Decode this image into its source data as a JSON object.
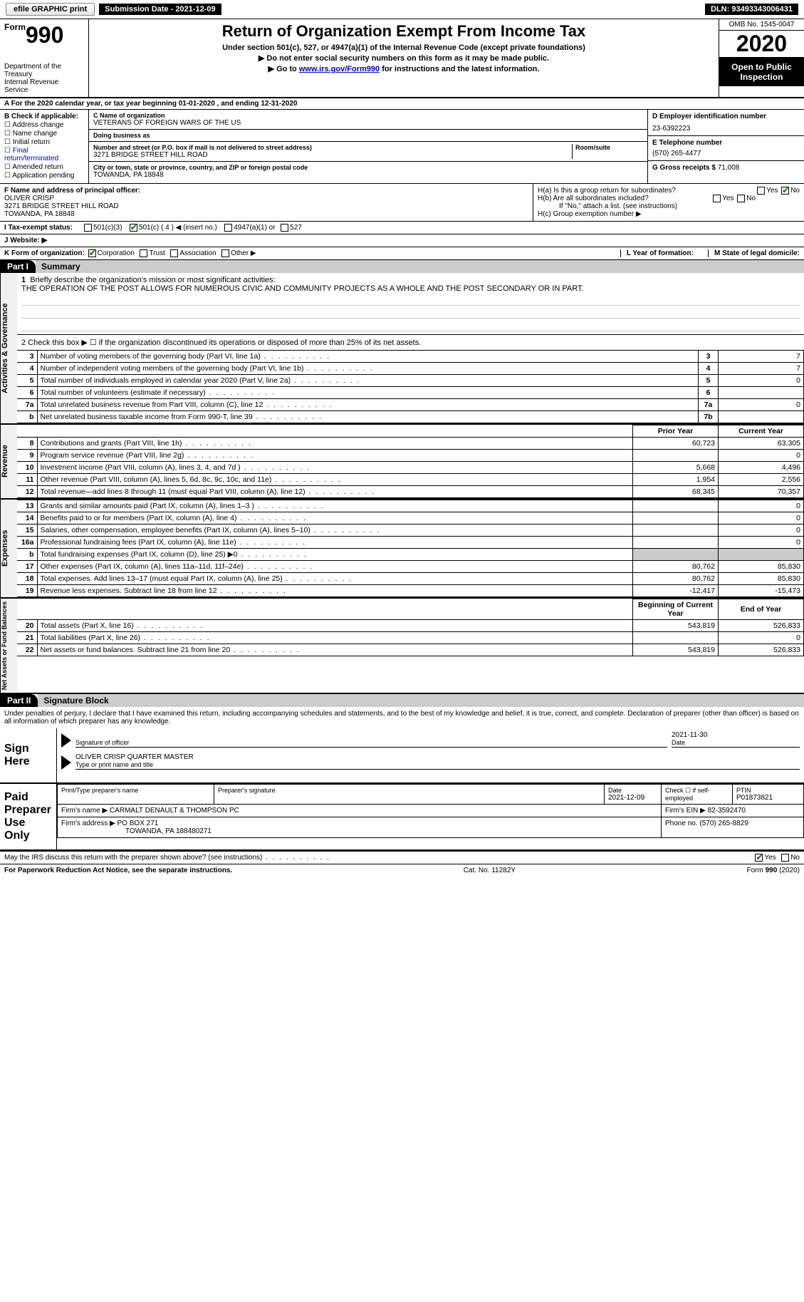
{
  "top_bar": {
    "efile_label": "efile GRAPHIC print",
    "sub_date_label": "Submission Date - 2021-12-09",
    "dln_label": "DLN: 93493343006431"
  },
  "header": {
    "form_word": "Form",
    "form_number": "990",
    "dept": "Department of the Treasury\nInternal Revenue Service",
    "title": "Return of Organization Exempt From Income Tax",
    "sub1": "Under section 501(c), 527, or 4947(a)(1) of the Internal Revenue Code (except private foundations)",
    "sub2": "▶ Do not enter social security numbers on this form as it may be made public.",
    "sub3_prefix": "▶ Go to ",
    "sub3_link": "www.irs.gov/Form990",
    "sub3_suffix": " for instructions and the latest information.",
    "omb": "OMB No. 1545-0047",
    "year": "2020",
    "open_public": "Open to Public Inspection"
  },
  "period": {
    "text": "A For the 2020 calendar year, or tax year beginning 01-01-2020     , and ending 12-31-2020"
  },
  "box_b": {
    "header": "B Check if applicable:",
    "items": [
      "Address change",
      "Name change",
      "Initial return",
      "Final return/terminated",
      "Amended return",
      "Application pending"
    ]
  },
  "box_c": {
    "name_label": "C Name of organization",
    "name": "VETERANS OF FOREIGN WARS OF THE US",
    "dba_label": "Doing business as",
    "dba": "",
    "addr_label": "Number and street (or P.O. box if mail is not delivered to street address)",
    "room_label": "Room/suite",
    "addr": "3271 BRIDGE STREET HILL ROAD",
    "city_label": "City or town, state or province, country, and ZIP or foreign postal code",
    "city": "TOWANDA, PA  18848"
  },
  "box_d": {
    "label": "D Employer identification number",
    "value": "23-6392223"
  },
  "box_e": {
    "label": "E Telephone number",
    "value": "(570) 265-4477"
  },
  "box_g": {
    "label": "G Gross receipts $",
    "value": "71,008"
  },
  "box_f": {
    "label": "F  Name and address of principal officer:",
    "name": "OLIVER CRISP",
    "addr1": "3271 BRIDGE STREET HILL ROAD",
    "addr2": "TOWANDA, PA  18848"
  },
  "box_h": {
    "ha": "H(a)  Is this a group return for subordinates?",
    "hb": "H(b)  Are all subordinates included?",
    "hb_note": "If \"No,\" attach a list. (see instructions)",
    "hc": "H(c)  Group exemption number ▶",
    "yes": "Yes",
    "no": "No"
  },
  "tax_status": {
    "label": "I  Tax-exempt status:",
    "opts": [
      "501(c)(3)",
      "501(c) ( 4 ) ◀ (insert no.)",
      "4947(a)(1) or",
      "527"
    ],
    "checked_index": 1
  },
  "website": {
    "label": "J  Website: ▶"
  },
  "k_line": {
    "label": "K Form of organization:",
    "opts": [
      "Corporation",
      "Trust",
      "Association",
      "Other ▶"
    ],
    "checked_index": 0,
    "l_label": "L Year of formation:",
    "l_value": "",
    "m_label": "M State of legal domicile:",
    "m_value": ""
  },
  "part1": {
    "tab": "Part I",
    "title": "Summary",
    "line1_label": "1",
    "line1_text": "Briefly describe the organization's mission or most significant activities:",
    "line1_desc": "THE OPERATION OF THE POST ALLOWS FOR NUMEROUS CIVIC AND COMMUNITY PROJECTS AS A WHOLE AND THE POST SECONDARY OR IN PART.",
    "line2": "2   Check this box ▶ ☐  if the organization discontinued its operations or disposed of more than 25% of its net assets.",
    "governance_label": "Activities & Governance",
    "revenue_label": "Revenue",
    "expenses_label": "Expenses",
    "netassets_label": "Net Assets or Fund Balances",
    "rows_gov": [
      {
        "n": "3",
        "text": "Number of voting members of the governing body (Part VI, line 1a)",
        "code": "3",
        "val": "7"
      },
      {
        "n": "4",
        "text": "Number of independent voting members of the governing body (Part VI, line 1b)",
        "code": "4",
        "val": "7"
      },
      {
        "n": "5",
        "text": "Total number of individuals employed in calendar year 2020 (Part V, line 2a)",
        "code": "5",
        "val": "0"
      },
      {
        "n": "6",
        "text": "Total number of volunteers (estimate if necessary)",
        "code": "6",
        "val": ""
      },
      {
        "n": "7a",
        "text": "Total unrelated business revenue from Part VIII, column (C), line 12",
        "code": "7a",
        "val": "0"
      },
      {
        "n": "b",
        "text": "Net unrelated business taxable income from Form 990-T, line 39",
        "code": "7b",
        "val": ""
      }
    ],
    "col_headers": {
      "prior": "Prior Year",
      "current": "Current Year",
      "boy": "Beginning of Current Year",
      "eoy": "End of Year"
    },
    "rows_rev": [
      {
        "n": "8",
        "text": "Contributions and grants (Part VIII, line 1h)",
        "p": "60,723",
        "c": "63,305"
      },
      {
        "n": "9",
        "text": "Program service revenue (Part VIII, line 2g)",
        "p": "",
        "c": "0"
      },
      {
        "n": "10",
        "text": "Investment income (Part VIII, column (A), lines 3, 4, and 7d )",
        "p": "5,668",
        "c": "4,496"
      },
      {
        "n": "11",
        "text": "Other revenue (Part VIII, column (A), lines 5, 6d, 8c, 9c, 10c, and 11e)",
        "p": "1,954",
        "c": "2,556"
      },
      {
        "n": "12",
        "text": "Total revenue—add lines 8 through 11 (must equal Part VIII, column (A), line 12)",
        "p": "68,345",
        "c": "70,357"
      }
    ],
    "rows_exp": [
      {
        "n": "13",
        "text": "Grants and similar amounts paid (Part IX, column (A), lines 1–3 )",
        "p": "",
        "c": "0"
      },
      {
        "n": "14",
        "text": "Benefits paid to or for members (Part IX, column (A), line 4)",
        "p": "",
        "c": "0"
      },
      {
        "n": "15",
        "text": "Salaries, other compensation, employee benefits (Part IX, column (A), lines 5–10)",
        "p": "",
        "c": "0"
      },
      {
        "n": "16a",
        "text": "Professional fundraising fees (Part IX, column (A), line 11e)",
        "p": "",
        "c": "0"
      },
      {
        "n": "b",
        "text": "Total fundraising expenses (Part IX, column (D), line 25) ▶0",
        "p": "shaded",
        "c": "shaded"
      },
      {
        "n": "17",
        "text": "Other expenses (Part IX, column (A), lines 11a–11d, 11f–24e)",
        "p": "80,762",
        "c": "85,830"
      },
      {
        "n": "18",
        "text": "Total expenses. Add lines 13–17 (must equal Part IX, column (A), line 25)",
        "p": "80,762",
        "c": "85,830"
      },
      {
        "n": "19",
        "text": "Revenue less expenses. Subtract line 18 from line 12",
        "p": "-12,417",
        "c": "-15,473"
      }
    ],
    "rows_net": [
      {
        "n": "20",
        "text": "Total assets (Part X, line 16)",
        "p": "543,819",
        "c": "526,833"
      },
      {
        "n": "21",
        "text": "Total liabilities (Part X, line 26)",
        "p": "",
        "c": "0"
      },
      {
        "n": "22",
        "text": "Net assets or fund balances. Subtract line 21 from line 20",
        "p": "543,819",
        "c": "526,833"
      }
    ]
  },
  "part2": {
    "tab": "Part II",
    "title": "Signature Block",
    "declaration": "Under penalties of perjury, I declare that I have examined this return, including accompanying schedules and statements, and to the best of my knowledge and belief, it is true, correct, and complete. Declaration of preparer (other than officer) is based on all information of which preparer has any knowledge."
  },
  "sign": {
    "left": "Sign Here",
    "sig_label": "Signature of officer",
    "date_label": "Date",
    "date": "2021-11-30",
    "name": "OLIVER CRISP  QUARTER MASTER",
    "name_label": "Type or print name and title"
  },
  "preparer": {
    "left1": "Paid",
    "left2": "Preparer",
    "left3": "Use Only",
    "headers": {
      "name": "Print/Type preparer's name",
      "sig": "Preparer's signature",
      "date": "Date",
      "selfemp": "Check ☐ if self-employed",
      "ptin": "PTIN"
    },
    "date": "2021-12-09",
    "ptin": "P01873821",
    "firm_name_label": "Firm's name      ▶",
    "firm_name": "CARMALT DENAULT & THOMPSON PC",
    "firm_ein_label": "Firm's EIN ▶",
    "firm_ein": "82-3592470",
    "firm_addr_label": "Firm's address ▶",
    "firm_addr1": "PO BOX 271",
    "firm_addr2": "TOWANDA, PA  188480271",
    "phone_label": "Phone no.",
    "phone": "(570) 265-8829"
  },
  "discuss": {
    "text": "May the IRS discuss this return with the preparer shown above? (see instructions)",
    "yes": "Yes",
    "no": "No"
  },
  "footer": {
    "left": "For Paperwork Reduction Act Notice, see the separate instructions.",
    "center": "Cat. No. 11282Y",
    "right": "Form 990 (2020)"
  },
  "colors": {
    "header_bg": "#cccccc",
    "shaded": "#cccccc",
    "black": "#000000",
    "link": "#0000cc",
    "check": "#2e7d32"
  }
}
